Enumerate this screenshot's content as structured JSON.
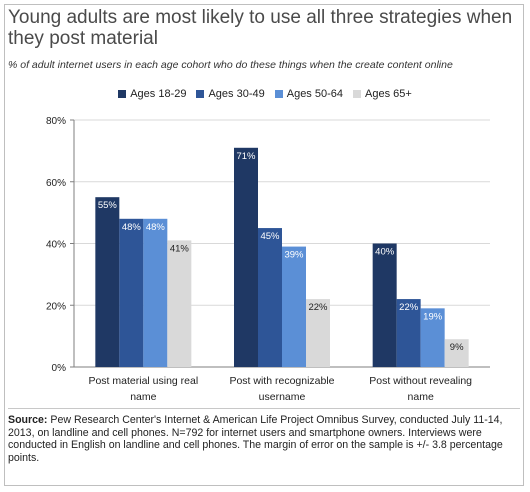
{
  "title": "Young adults are most likely to use all three strategies when they post material",
  "subtitle": "% of adult internet users in each age cohort who do these things when the create content online",
  "footer": {
    "source_label": "Source:",
    "source_text": "Pew Research Center's Internet & American Life Project Omnibus Survey, conducted July 11-14, 2013, on landline and cell phones. N=792 for internet users and smartphone owners. Interviews were conducted in English on landline and cell phones. The margin of error on the sample is +/- 3.8 percentage points."
  },
  "colors": {
    "ages_18_29": "#1f3864",
    "ages_30_49": "#2e5597",
    "ages_50_64": "#5b8fd6",
    "ages_65_plus": "#d9d9d9"
  },
  "chart_data": {
    "type": "bar",
    "categories": [
      "Post material using real name",
      "Post with recognizable username",
      "Post without revealing name"
    ],
    "series": [
      {
        "name": "Ages 18-29",
        "values": [
          55,
          71,
          40
        ],
        "color": "#1f3864"
      },
      {
        "name": "Ages 30-49",
        "values": [
          48,
          45,
          22
        ],
        "color": "#2e5597"
      },
      {
        "name": "Ages 50-64",
        "values": [
          48,
          39,
          19
        ],
        "color": "#5b8fd6"
      },
      {
        "name": "Ages 65+",
        "values": [
          41,
          22,
          9
        ],
        "color": "#d9d9d9"
      }
    ],
    "ylim": [
      0,
      80
    ],
    "yticks": [
      0,
      20,
      40,
      60,
      80
    ],
    "ytick_labels": [
      "0%",
      "20%",
      "40%",
      "60%",
      "80%"
    ],
    "grid": true,
    "legend_position": "top"
  }
}
